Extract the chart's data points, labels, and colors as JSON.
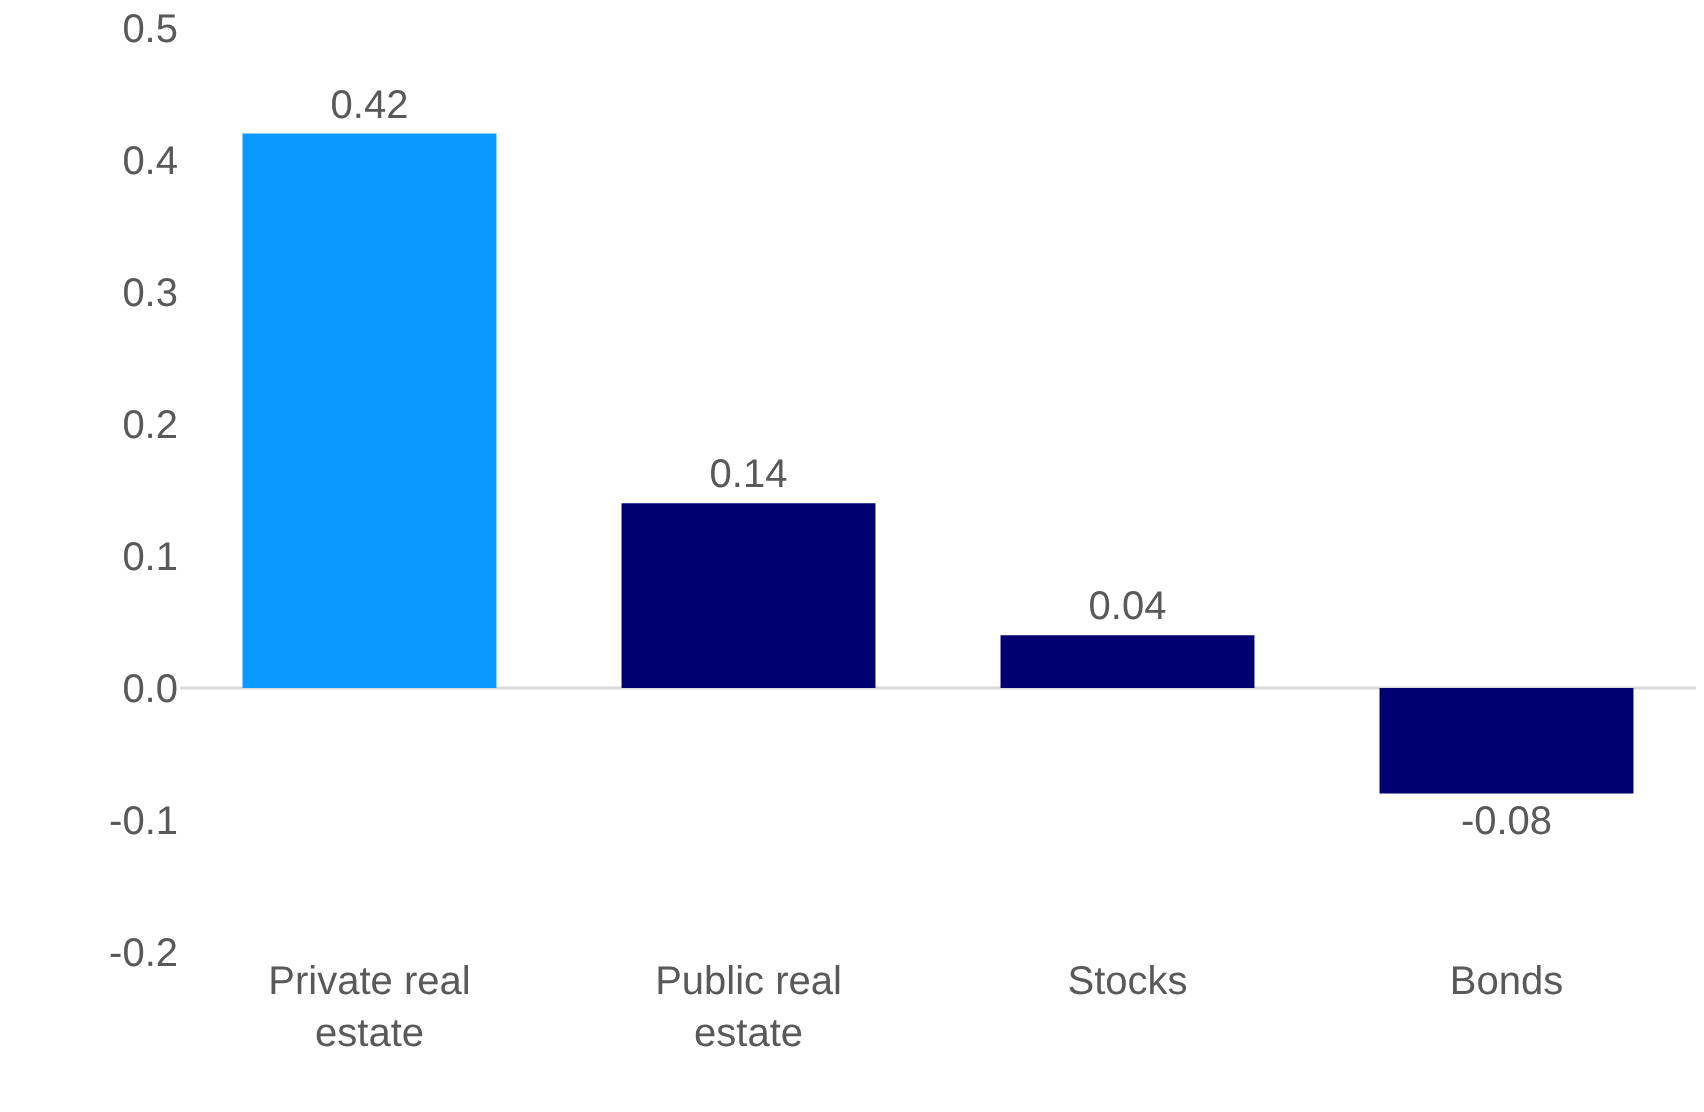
{
  "chart_data": {
    "type": "bar",
    "categories": [
      "Private real estate",
      "Public real estate",
      "Stocks",
      "Bonds"
    ],
    "values": [
      0.42,
      0.14,
      0.04,
      -0.08
    ],
    "colors": [
      "#0a99fe",
      "#000070",
      "#000070",
      "#000070"
    ],
    "ylim": [
      -0.2,
      0.5
    ],
    "yticks": [
      -0.2,
      -0.1,
      {
        "value": 0,
        "label": "0.0"
      },
      0.1,
      0.2,
      0.3,
      0.4,
      0.5
    ],
    "ref_lines": [
      {
        "axis": "y",
        "value": 0,
        "color": "#d9d9d9"
      }
    ],
    "data_labels": true,
    "grid": false,
    "legend": false
  }
}
